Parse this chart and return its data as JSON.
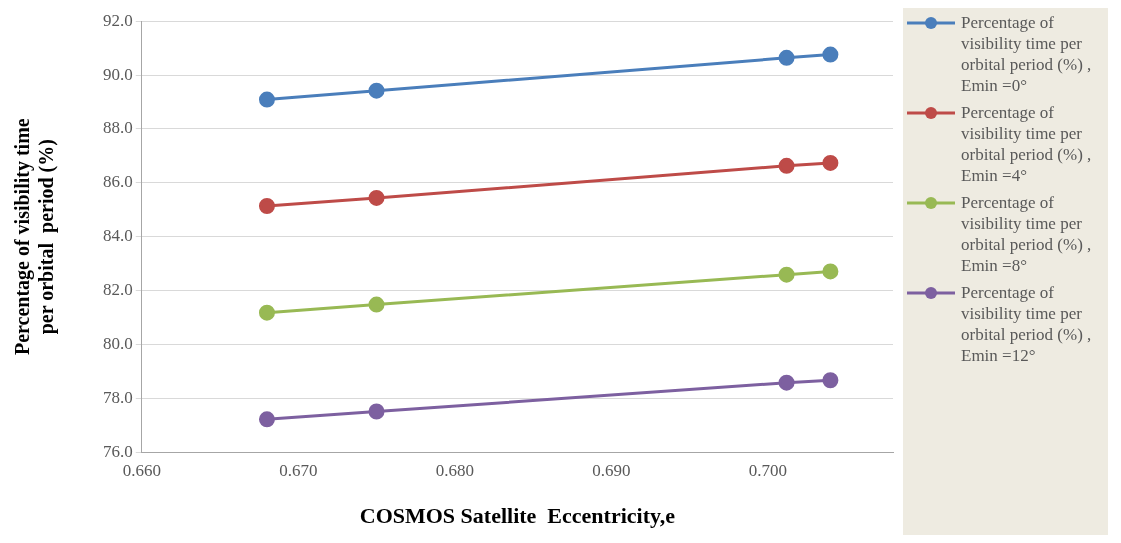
{
  "chart_data": {
    "type": "line",
    "xlabel": "COSMOS Satellite  Eccentricity,e",
    "ylabel": "Percentage of visibility time per orbital  period (%)",
    "x": [
      0.668,
      0.675,
      0.7012,
      0.704
    ],
    "series": [
      {
        "name": "Percentage of visibility time per orbital period (%) , Emin =0°",
        "color": "#4a7ebb",
        "values": [
          89.09,
          89.42,
          90.64,
          90.76
        ]
      },
      {
        "name": "Percentage of visibility time per orbital period (%) , Emin =4°",
        "color": "#be4b48",
        "values": [
          85.14,
          85.44,
          86.63,
          86.74
        ]
      },
      {
        "name": "Percentage of visibility time per orbital period (%) , Emin =8°",
        "color": "#98b954",
        "values": [
          81.18,
          81.48,
          82.59,
          82.71
        ]
      },
      {
        "name": "Percentage of visibility time per orbital period (%) , Emin =12°",
        "color": "#7d60a0",
        "values": [
          77.22,
          77.51,
          78.58,
          78.67
        ]
      }
    ],
    "xlim": [
      0.66,
      0.708
    ],
    "xticks": [
      {
        "value": 0.66,
        "label": "0.660"
      },
      {
        "value": 0.67,
        "label": "0.670"
      },
      {
        "value": 0.68,
        "label": "0.680"
      },
      {
        "value": 0.69,
        "label": "0.690"
      },
      {
        "value": 0.7,
        "label": "0.700"
      }
    ],
    "ylim": [
      76,
      92
    ],
    "yticks": [
      {
        "value": 76,
        "label": "76.0"
      },
      {
        "value": 78,
        "label": "78.0"
      },
      {
        "value": 80,
        "label": "80.0"
      },
      {
        "value": 82,
        "label": "82.0"
      },
      {
        "value": 84,
        "label": "84.0"
      },
      {
        "value": 86,
        "label": "86.0"
      },
      {
        "value": 88,
        "label": "88.0"
      },
      {
        "value": 90,
        "label": "90.0"
      },
      {
        "value": 92,
        "label": "92.0"
      }
    ],
    "grid": "y",
    "legend": "right",
    "marker": "circle",
    "line_style": "solid"
  }
}
